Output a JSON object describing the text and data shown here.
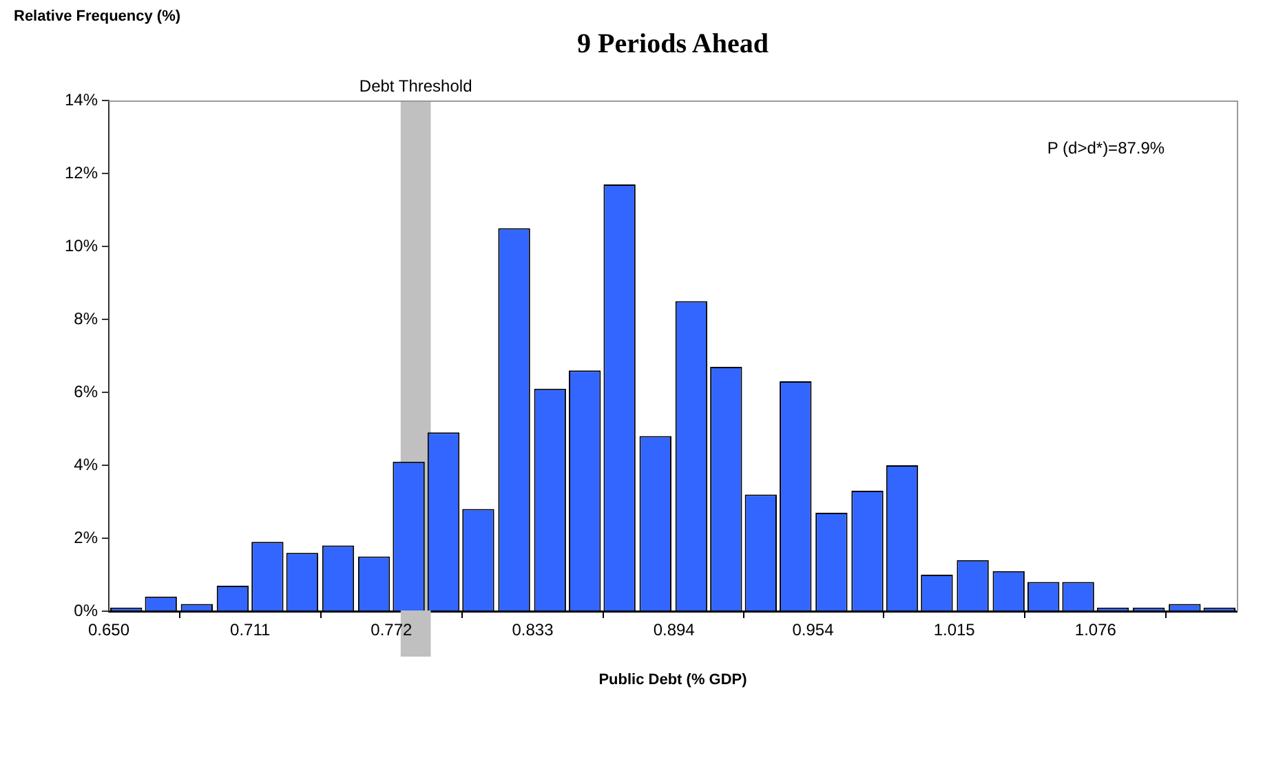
{
  "chart_data": {
    "type": "histogram",
    "title": "9 Periods Ahead",
    "xlabel": "Public Debt (% GDP)",
    "ylabel": "Relative Frequency (%)",
    "bins": [
      0.65,
      0.665,
      0.68,
      0.696,
      0.711,
      0.726,
      0.741,
      0.757,
      0.772,
      0.787,
      0.802,
      0.817,
      0.833,
      0.848,
      0.863,
      0.878,
      0.894,
      0.909,
      0.924,
      0.939,
      0.954,
      0.97,
      0.985,
      1.0,
      1.015,
      1.031,
      1.046,
      1.061,
      1.076,
      1.091,
      1.107,
      1.122,
      1.137
    ],
    "values": [
      0.1,
      0.4,
      0.2,
      0.7,
      1.9,
      1.6,
      1.8,
      1.5,
      4.1,
      4.9,
      2.8,
      10.5,
      6.1,
      6.6,
      11.7,
      4.8,
      8.5,
      6.7,
      3.2,
      6.3,
      2.7,
      3.3,
      4.0,
      1.0,
      1.4,
      1.1,
      0.8,
      0.8,
      0.1,
      0.1,
      0.2,
      0.1
    ],
    "color": "#3366ff",
    "xlim": [
      0.65,
      1.137
    ],
    "xticks": [
      {
        "value": 0.65,
        "label": "0.650"
      },
      0.711,
      0.772,
      0.833,
      0.894,
      0.954,
      1.015,
      1.076
    ],
    "ylim": [
      0,
      14
    ],
    "yticks": [
      {
        "value": 0,
        "label": "0%"
      },
      {
        "value": 2,
        "label": "2%"
      },
      {
        "value": 4,
        "label": "4%"
      },
      {
        "value": 6,
        "label": "6%"
      },
      {
        "value": 8,
        "label": "8%"
      },
      {
        "value": 10,
        "label": "10%"
      },
      {
        "value": 12,
        "label": "12%"
      },
      {
        "value": 14,
        "label": "14%"
      }
    ],
    "bands": [
      {
        "axis": "x",
        "from": 0.776,
        "to": 0.789,
        "label": "Debt Threshold",
        "color": "#c0c0c0"
      }
    ],
    "annotations": [
      "P (d>d*)=87.9%"
    ],
    "grid": false,
    "legend": false
  }
}
